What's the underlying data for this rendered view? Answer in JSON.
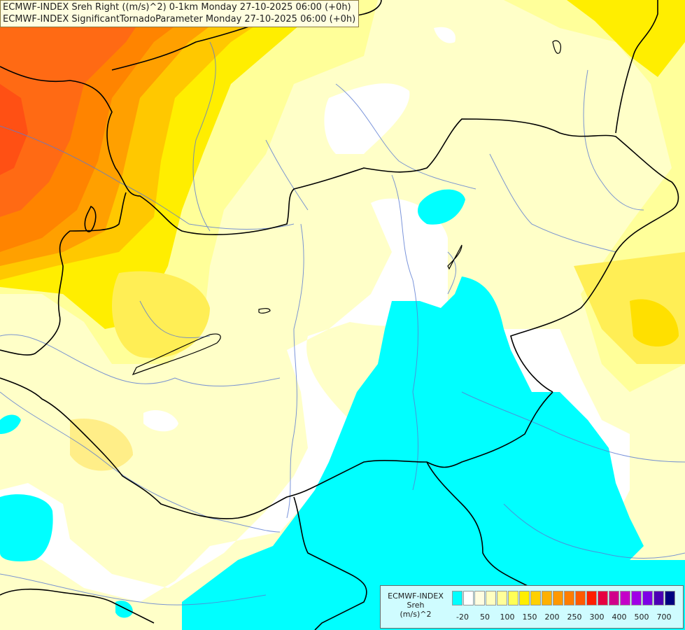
{
  "header": {
    "line1": "ECMWF-INDEX Sreh Right ((m/s)^2) 0-1km Monday 27-10-2025 06:00 (+0h)",
    "line2": "ECMWF-INDEX SignificantTornadoParameter Monday 27-10-2025 06:00 (+0h)"
  },
  "legend": {
    "title_lines": [
      "ECMWF-INDEX",
      "Sreh",
      "(m/s)^2"
    ],
    "colors": [
      "#00ffff",
      "#ffffff",
      "#fffde0",
      "#ffffc0",
      "#ffff99",
      "#ffff55",
      "#ffee00",
      "#ffd000",
      "#ffb000",
      "#ff9800",
      "#ff7d00",
      "#ff5a00",
      "#ff1e00",
      "#e60040",
      "#d0008a",
      "#c400c8",
      "#a000e6",
      "#7d00e6",
      "#4c00b4",
      "#000080"
    ],
    "ticks": [
      "-20",
      "50",
      "100",
      "150",
      "200",
      "250",
      "300",
      "400",
      "500",
      "700"
    ]
  },
  "map_colors": {
    "cyan": "#00ffff",
    "white": "#ffffff",
    "pale_yellow": "#ffffc8",
    "yellow": "#ffff9a",
    "yellow2": "#ffee00",
    "orange_light": "#ffb400",
    "orange": "#ff9a00",
    "orange_deep": "#ff7300",
    "red_orange": "#ff5a1e"
  }
}
